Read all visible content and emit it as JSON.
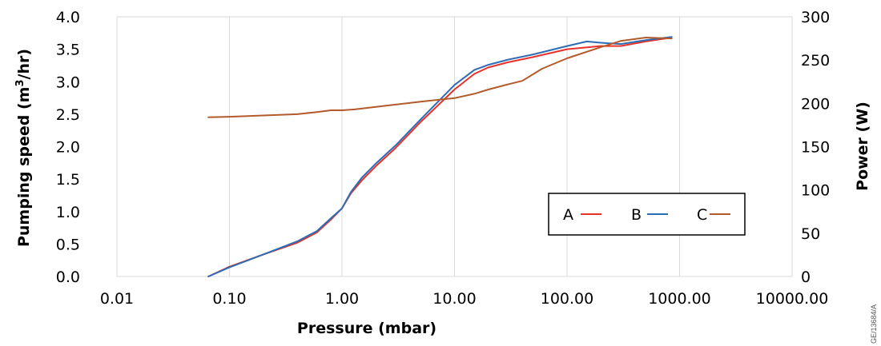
{
  "chart_data": {
    "type": "line",
    "xlabel": "Pressure (mbar)",
    "ylabel_left": {
      "main": "Pumping speed (m",
      "sup": "3",
      "tail": "/hr)"
    },
    "ylabel_right": "Power (W)",
    "x_scale": "log",
    "xlim": [
      0.01,
      10000
    ],
    "ylim_left": [
      0,
      4.0
    ],
    "ylim_right": [
      0,
      300
    ],
    "x_ticks": [
      0.01,
      0.1,
      1,
      10,
      100,
      1000,
      10000
    ],
    "x_tick_labels": [
      "0.01",
      "0.10",
      "1.00",
      "10.00",
      "100.00",
      "1000.00",
      "10000.00"
    ],
    "y_left_ticks": [
      0,
      0.5,
      1.0,
      1.5,
      2.0,
      2.5,
      3.0,
      3.5,
      4.0
    ],
    "y_left_tick_labels": [
      "0.0",
      "0.5",
      "1.0",
      "1.5",
      "2.0",
      "2.5",
      "3.0",
      "3.5",
      "4.0"
    ],
    "y_right_ticks": [
      0,
      50,
      100,
      150,
      200,
      250,
      300
    ],
    "y_right_tick_labels": [
      "0",
      "50",
      "100",
      "150",
      "200",
      "250",
      "300"
    ],
    "grid": "vertical",
    "legend_position": "lower-right",
    "series": [
      {
        "name": "A",
        "color": "#e8312a",
        "axis": "left",
        "x": [
          0.065,
          0.1,
          0.2,
          0.4,
          0.6,
          0.8,
          1.0,
          1.2,
          1.5,
          2,
          3,
          5,
          10,
          15,
          20,
          30,
          50,
          100,
          200,
          300,
          500,
          850
        ],
        "y": [
          0.0,
          0.15,
          0.34,
          0.52,
          0.68,
          0.88,
          1.05,
          1.28,
          1.48,
          1.7,
          1.98,
          2.38,
          2.88,
          3.12,
          3.22,
          3.3,
          3.38,
          3.5,
          3.55,
          3.55,
          3.62,
          3.68
        ]
      },
      {
        "name": "B",
        "color": "#2e6bb5",
        "axis": "left",
        "x": [
          0.065,
          0.1,
          0.2,
          0.4,
          0.6,
          0.8,
          1.0,
          1.2,
          1.5,
          2,
          3,
          5,
          10,
          15,
          20,
          30,
          50,
          100,
          150,
          200,
          300,
          500,
          850
        ],
        "y": [
          0.0,
          0.14,
          0.34,
          0.54,
          0.7,
          0.9,
          1.05,
          1.3,
          1.52,
          1.74,
          2.02,
          2.42,
          2.95,
          3.18,
          3.26,
          3.34,
          3.42,
          3.55,
          3.62,
          3.6,
          3.58,
          3.64,
          3.69
        ]
      },
      {
        "name": "C",
        "color": "#b35a2c",
        "axis": "right",
        "x": [
          0.065,
          0.1,
          0.2,
          0.4,
          0.6,
          0.8,
          1.0,
          1.3,
          2,
          5,
          10,
          15,
          20,
          30,
          40,
          60,
          100,
          200,
          300,
          500,
          850
        ],
        "y": [
          184,
          184.5,
          186,
          187.5,
          190,
          192,
          192,
          193,
          196,
          202,
          206,
          211,
          216,
          222,
          226,
          240,
          252,
          265,
          272,
          276,
          275
        ]
      }
    ]
  },
  "side_ref": "GE/13684/A"
}
